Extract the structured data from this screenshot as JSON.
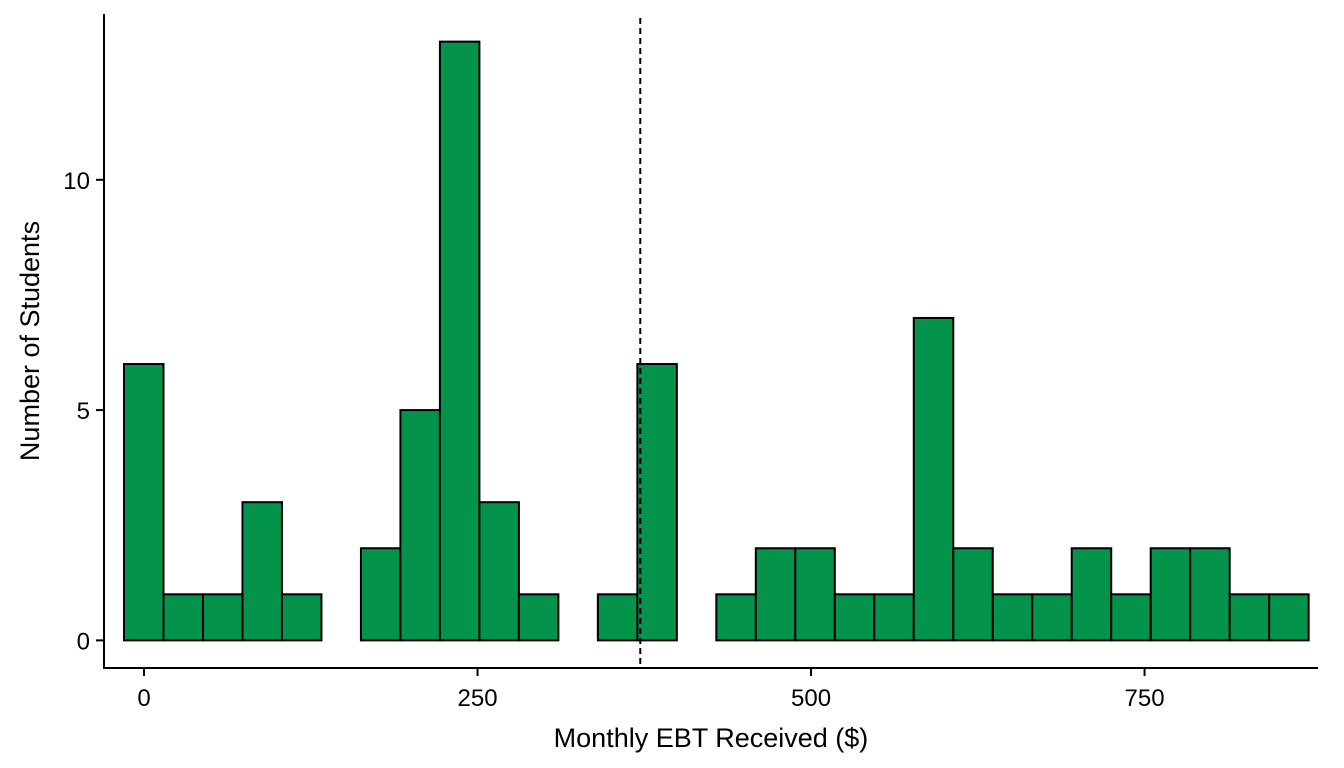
{
  "chart_data": {
    "type": "bar",
    "subtype": "histogram",
    "xlabel": "Monthly EBT Received ($)",
    "ylabel": "Number of Students",
    "xlim": [
      -30,
      880
    ],
    "ylim": [
      -0.6,
      13.6
    ],
    "x_ticks": [
      0,
      250,
      500,
      750
    ],
    "x_tick_labels": [
      "0",
      "250",
      "500",
      "750"
    ],
    "y_ticks": [
      0,
      5,
      10
    ],
    "y_tick_labels": [
      "0",
      "5",
      "10"
    ],
    "bin_width": 29.6,
    "bins": [
      {
        "x0": -15.0,
        "x1": 14.6,
        "count": 6
      },
      {
        "x0": 14.6,
        "x1": 44.2,
        "count": 1
      },
      {
        "x0": 44.2,
        "x1": 73.8,
        "count": 1
      },
      {
        "x0": 73.8,
        "x1": 103.4,
        "count": 3
      },
      {
        "x0": 103.4,
        "x1": 133.0,
        "count": 1
      },
      {
        "x0": 133.0,
        "x1": 162.6,
        "count": 0
      },
      {
        "x0": 162.6,
        "x1": 192.2,
        "count": 2
      },
      {
        "x0": 192.2,
        "x1": 221.8,
        "count": 5
      },
      {
        "x0": 221.8,
        "x1": 251.4,
        "count": 13
      },
      {
        "x0": 251.4,
        "x1": 281.0,
        "count": 3
      },
      {
        "x0": 281.0,
        "x1": 310.6,
        "count": 1
      },
      {
        "x0": 310.6,
        "x1": 340.2,
        "count": 0
      },
      {
        "x0": 340.2,
        "x1": 369.8,
        "count": 1
      },
      {
        "x0": 369.8,
        "x1": 399.4,
        "count": 6
      },
      {
        "x0": 399.4,
        "x1": 429.0,
        "count": 0
      },
      {
        "x0": 429.0,
        "x1": 458.6,
        "count": 1
      },
      {
        "x0": 458.6,
        "x1": 488.2,
        "count": 2
      },
      {
        "x0": 488.2,
        "x1": 517.8,
        "count": 2
      },
      {
        "x0": 517.8,
        "x1": 547.4,
        "count": 1
      },
      {
        "x0": 547.4,
        "x1": 577.0,
        "count": 1
      },
      {
        "x0": 577.0,
        "x1": 606.6,
        "count": 7
      },
      {
        "x0": 606.6,
        "x1": 636.2,
        "count": 2
      },
      {
        "x0": 636.2,
        "x1": 665.8,
        "count": 1
      },
      {
        "x0": 665.8,
        "x1": 695.4,
        "count": 1
      },
      {
        "x0": 695.4,
        "x1": 725.0,
        "count": 2
      },
      {
        "x0": 725.0,
        "x1": 754.6,
        "count": 1
      },
      {
        "x0": 754.6,
        "x1": 784.2,
        "count": 2
      },
      {
        "x0": 784.2,
        "x1": 813.8,
        "count": 2
      },
      {
        "x0": 813.8,
        "x1": 843.4,
        "count": 1
      },
      {
        "x0": 843.4,
        "x1": 873.0,
        "count": 1
      }
    ],
    "reference_line": {
      "x": 372,
      "style": "dashed",
      "color": "#000000"
    },
    "bar_fill": "#03934b",
    "bar_stroke": "#000000",
    "grid": false,
    "legend": "none"
  }
}
